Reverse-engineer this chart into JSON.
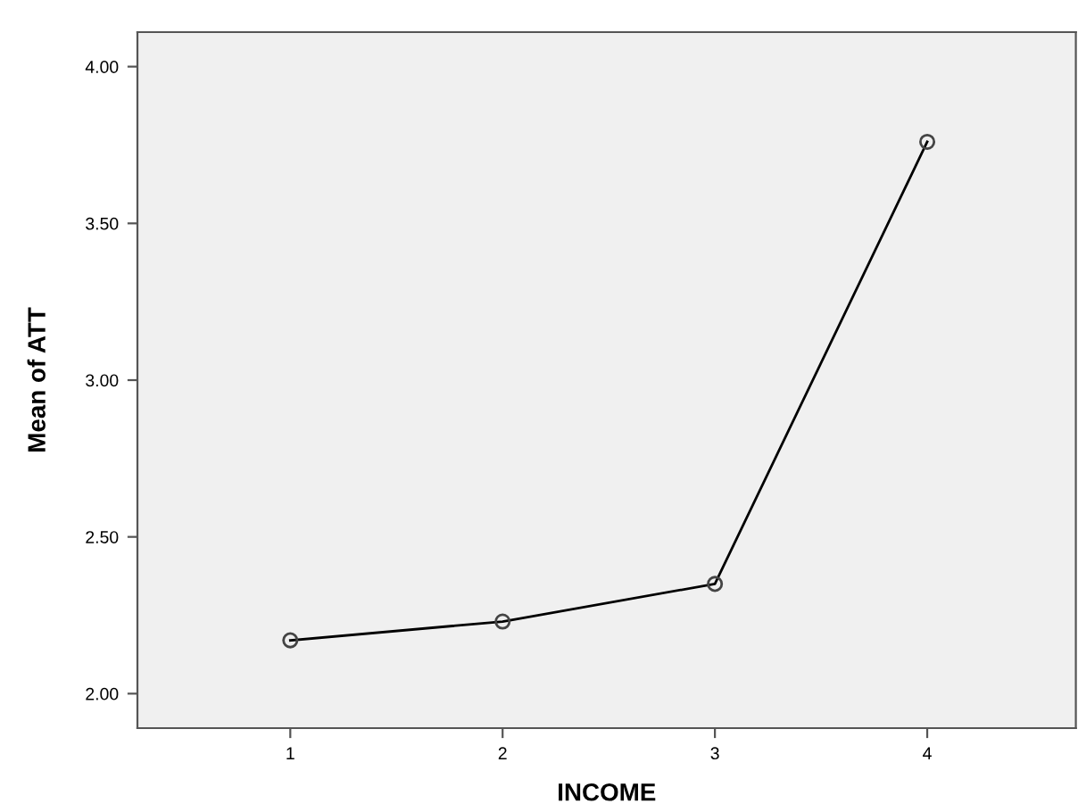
{
  "chart_data": {
    "type": "line",
    "xlabel": "INCOME",
    "ylabel": "Mean of ATT",
    "categories": [
      "1",
      "2",
      "3",
      "4"
    ],
    "series": [
      {
        "color": "#000000",
        "values": [
          2.17,
          2.23,
          2.35,
          3.76
        ]
      }
    ],
    "ylim": [
      1.89,
      4.11
    ],
    "yticks": [
      {
        "value": 2,
        "label": "2.00"
      },
      {
        "value": 2.5,
        "label": "2.50"
      },
      {
        "value": 3,
        "label": "3.00"
      },
      {
        "value": 3.5,
        "label": "3.50"
      },
      {
        "value": 4,
        "label": "4.00"
      }
    ],
    "grid": false,
    "marker": "circle",
    "line_style": "solid"
  }
}
